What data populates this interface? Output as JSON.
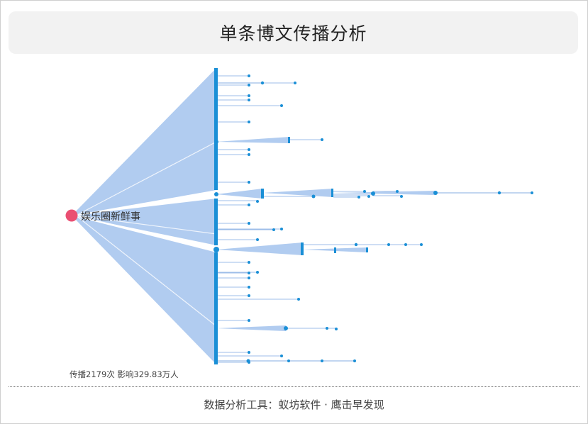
{
  "title": "单条博文传播分析",
  "diagram": {
    "root_label": "娱乐圈新鲜事",
    "colors": {
      "root": "#ea4f72",
      "node": "#1a8fd6",
      "edge_fill": "#a9c6ee",
      "edge_line": "#9dbde8"
    }
  },
  "stats_text": "传播2179次 影响329.83万人",
  "footer_text": "数据分析工具：蚁坊软件 · 鹰击早发现"
}
